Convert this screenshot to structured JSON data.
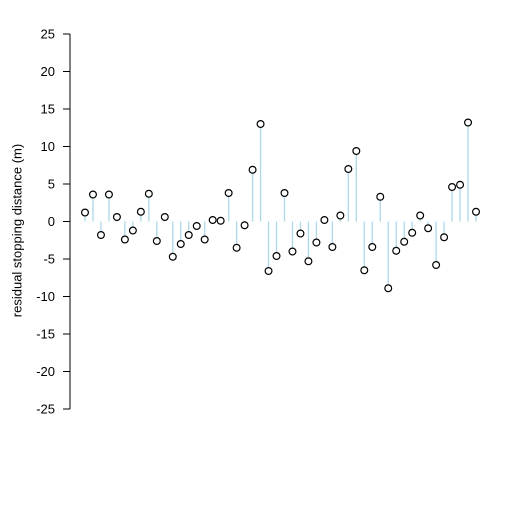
{
  "chart_data": {
    "type": "scatter",
    "style": "residual stem plot (open circles with vertical lines to zero)",
    "title": "",
    "xlabel": "",
    "ylabel": "residual stopping distance (m)",
    "ylim": [
      -25,
      25
    ],
    "yticks": [
      25,
      20,
      15,
      10,
      5,
      0,
      -5,
      -10,
      -15,
      -20,
      -25
    ],
    "x_axis_drawn": false,
    "grid": false,
    "legend": "none",
    "stem_color": "#ADD8E6",
    "point_color": "#000000",
    "x": [
      1,
      2,
      3,
      4,
      5,
      6,
      7,
      8,
      9,
      10,
      11,
      12,
      13,
      14,
      15,
      16,
      17,
      18,
      19,
      20,
      21,
      22,
      23,
      24,
      25,
      26,
      27,
      28,
      29,
      30,
      31,
      32,
      33,
      34,
      35,
      36,
      37,
      38,
      39,
      40,
      41,
      42,
      43,
      44,
      45,
      46,
      47,
      48,
      49,
      50
    ],
    "values": [
      1.2,
      3.6,
      -1.8,
      3.6,
      0.6,
      -2.4,
      -1.2,
      1.3,
      3.7,
      -2.6,
      0.6,
      -4.7,
      -3.0,
      -1.8,
      -0.6,
      -2.4,
      0.2,
      0.1,
      3.8,
      -3.5,
      -0.5,
      6.9,
      13.0,
      -6.6,
      -4.6,
      3.8,
      -4.0,
      -1.6,
      -5.3,
      -2.8,
      0.2,
      -3.4,
      0.8,
      7.0,
      9.4,
      -6.5,
      -3.4,
      3.3,
      -8.9,
      -3.9,
      -2.7,
      -1.5,
      0.8,
      -0.9,
      -5.8,
      -2.1,
      4.6,
      4.9,
      13.2,
      1.3
    ]
  }
}
